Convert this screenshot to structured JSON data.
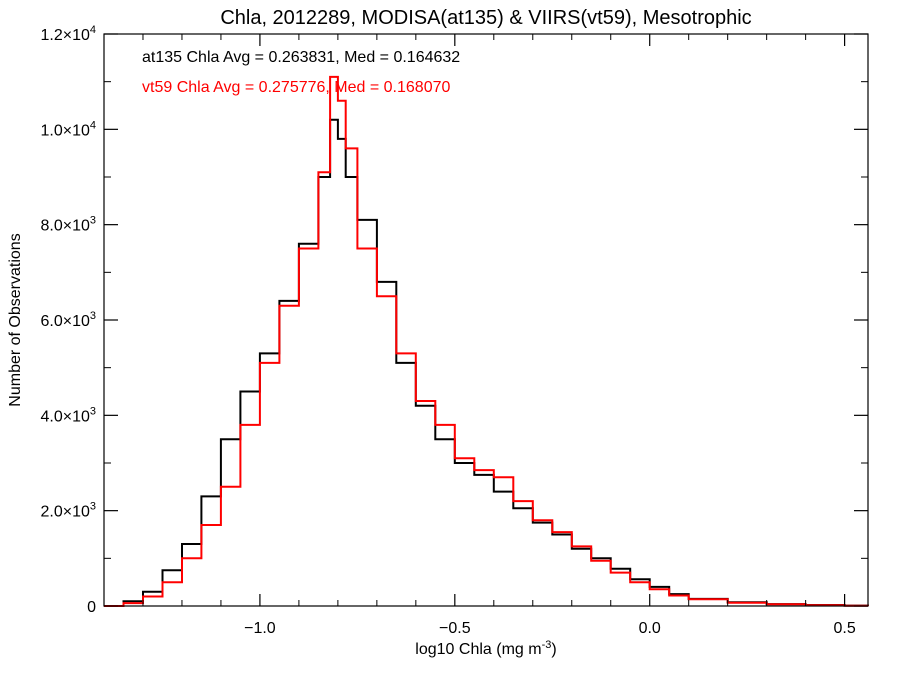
{
  "chart_data": {
    "type": "line",
    "title": "Chla, 2012289, MODISA(at135) & VIIRS(vt59), Mesotrophic",
    "xlabel": "log10 Chla (mg m",
    "xlabel_sup": "-3",
    "xlabel_close": ")",
    "ylabel": "Number of Observations",
    "xlim": [
      -1.4,
      0.56
    ],
    "ylim": [
      0,
      12000
    ],
    "grid": false,
    "x_ticks": [
      {
        "value": -1.0,
        "label": "−1.0"
      },
      {
        "value": -0.5,
        "label": "−0.5"
      },
      {
        "value": 0.0,
        "label": "0.0"
      },
      {
        "value": 0.5,
        "label": "0.5"
      }
    ],
    "y_ticks": [
      {
        "value": 0,
        "mant": "0",
        "exp": ""
      },
      {
        "value": 2000,
        "mant": "2.0×10",
        "exp": "3"
      },
      {
        "value": 4000,
        "mant": "4.0×10",
        "exp": "3"
      },
      {
        "value": 6000,
        "mant": "6.0×10",
        "exp": "3"
      },
      {
        "value": 8000,
        "mant": "8.0×10",
        "exp": "3"
      },
      {
        "value": 10000,
        "mant": "1.0×10",
        "exp": "4"
      },
      {
        "value": 12000,
        "mant": "1.2×10",
        "exp": "4"
      }
    ],
    "annotations": [
      {
        "text": "at135 Chla Avg = 0.263831, Med = 0.164632",
        "color": "#000000"
      },
      {
        "text": "vt59 Chla Avg = 0.275776, Med = 0.168070",
        "color": "#ff0000"
      }
    ],
    "series": [
      {
        "color": "#000000",
        "style": "step",
        "x": [
          -1.4,
          -1.35,
          -1.3,
          -1.25,
          -1.2,
          -1.15,
          -1.1,
          -1.05,
          -1.0,
          -0.95,
          -0.9,
          -0.85,
          -0.82,
          -0.8,
          -0.78,
          -0.75,
          -0.7,
          -0.65,
          -0.6,
          -0.55,
          -0.5,
          -0.45,
          -0.4,
          -0.35,
          -0.3,
          -0.25,
          -0.2,
          -0.15,
          -0.1,
          -0.05,
          0.0,
          0.05,
          0.1,
          0.2,
          0.3,
          0.4,
          0.5,
          0.56
        ],
        "y": [
          0,
          100,
          300,
          750,
          1300,
          2300,
          3500,
          4500,
          5300,
          6400,
          7600,
          9000,
          10200,
          9800,
          9000,
          8100,
          6800,
          5100,
          4200,
          3500,
          3000,
          2750,
          2400,
          2050,
          1750,
          1500,
          1200,
          1000,
          780,
          560,
          400,
          250,
          150,
          80,
          40,
          20,
          8,
          5
        ]
      },
      {
        "color": "#ff0000",
        "style": "step",
        "x": [
          -1.4,
          -1.35,
          -1.3,
          -1.25,
          -1.2,
          -1.15,
          -1.1,
          -1.05,
          -1.0,
          -0.95,
          -0.9,
          -0.85,
          -0.82,
          -0.8,
          -0.78,
          -0.75,
          -0.7,
          -0.65,
          -0.6,
          -0.55,
          -0.5,
          -0.45,
          -0.4,
          -0.35,
          -0.3,
          -0.25,
          -0.2,
          -0.15,
          -0.1,
          -0.05,
          0.0,
          0.05,
          0.1,
          0.2,
          0.3,
          0.4,
          0.5,
          0.56
        ],
        "y": [
          0,
          60,
          200,
          500,
          1000,
          1700,
          2500,
          3800,
          5100,
          6300,
          7500,
          9100,
          11100,
          10600,
          9600,
          7500,
          6500,
          5300,
          4300,
          3800,
          3100,
          2850,
          2700,
          2200,
          1800,
          1550,
          1250,
          950,
          700,
          500,
          350,
          220,
          140,
          70,
          35,
          15,
          6,
          3
        ]
      }
    ]
  }
}
